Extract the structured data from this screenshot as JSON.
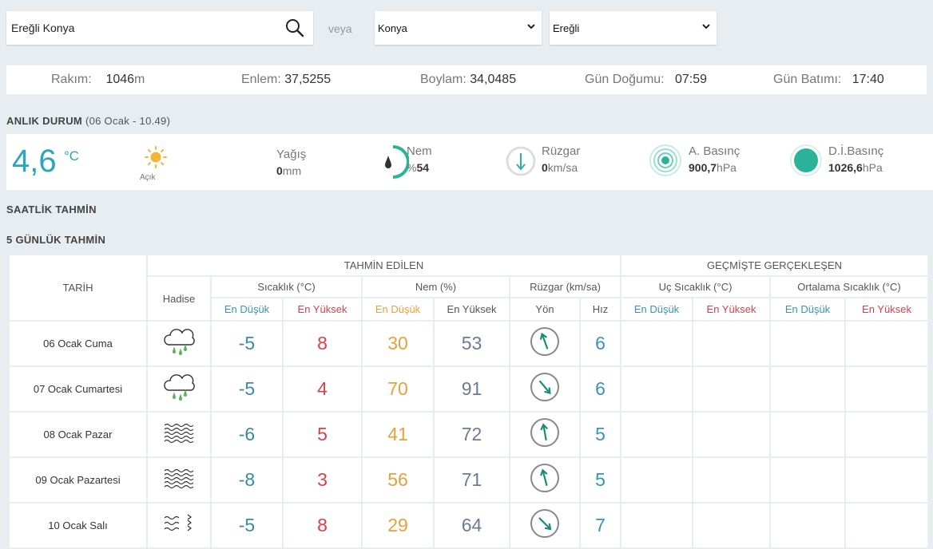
{
  "search": {
    "value": "Ereğli Konya",
    "or_label": "veya"
  },
  "selects": {
    "province": "Konya",
    "district": "Ereğli"
  },
  "info": {
    "rakim_label": "Rakım:",
    "rakim_value": "1046",
    "rakim_unit": "m",
    "enlem_label": "Enlem:",
    "enlem_value": "37,5255",
    "boylam_label": "Boylam:",
    "boylam_value": "34,0485",
    "gundogumu_label": "Gün Doğumu:",
    "gundogumu_value": "07:59",
    "gunbatimi_label": "Gün Batımı:",
    "gunbatimi_value": "17:40"
  },
  "current": {
    "title": "ANLIK DURUM",
    "subtitle": "(06 Ocak - 10.49)",
    "temp": "4,6",
    "temp_unit": "°C",
    "condition": "Açık",
    "yagis_label": "Yağış",
    "yagis_value": "0",
    "yagis_unit": "mm",
    "nem_label": "Nem",
    "nem_prefix": "%",
    "nem_value": "54",
    "ruzgar_label": "Rüzgar",
    "ruzgar_value": "0",
    "ruzgar_unit": "km/sa",
    "abasinc_label": "A. Basınç",
    "abasinc_value": "900,7",
    "abasinc_unit": "hPa",
    "dibasinc_label": "D.İ.Basınç",
    "dibasinc_value": "1026,6",
    "dibasinc_unit": "hPa",
    "colors": {
      "accent": "#2aa6bf",
      "teal": "#2bb39a"
    }
  },
  "hourly": {
    "title": "SAATLİK TAHMİN"
  },
  "forecast": {
    "title": "5 GÜNLÜK TAHMİN",
    "headers": {
      "tarih": "TARİH",
      "predicted": "TAHMİN EDİLEN",
      "past": "GEÇMİŞTE GERÇEKLEŞEN",
      "hadise": "Hadise",
      "sicaklik": "Sıcaklık (°C)",
      "nem": "Nem (%)",
      "ruzgar": "Rüzgar (km/sa)",
      "uc_sicaklik": "Uç Sıcaklık (°C)",
      "ort_sicaklik": "Ortalama Sıcaklık (°C)",
      "en_dusuk": "En Düşük",
      "en_yuksek": "En Yüksek",
      "yon": "Yön",
      "hiz": "Hız"
    },
    "rows": [
      {
        "date": "06 Ocak Cuma",
        "icon": "rain-cloud-icon",
        "tmin": "-5",
        "tmax": "8",
        "nmin": "30",
        "nmax": "53",
        "dir_deg": 160,
        "speed": "6"
      },
      {
        "date": "07 Ocak Cumartesi",
        "icon": "rain-cloud-icon",
        "tmin": "-5",
        "tmax": "4",
        "nmin": "70",
        "nmax": "91",
        "dir_deg": 320,
        "speed": "6"
      },
      {
        "date": "08 Ocak Pazar",
        "icon": "fog-icon",
        "tmin": "-6",
        "tmax": "5",
        "nmin": "41",
        "nmax": "72",
        "dir_deg": 170,
        "speed": "5"
      },
      {
        "date": "09 Ocak Pazartesi",
        "icon": "fog-icon",
        "tmin": "-8",
        "tmax": "3",
        "nmin": "56",
        "nmax": "71",
        "dir_deg": 165,
        "speed": "5"
      },
      {
        "date": "10 Ocak Salı",
        "icon": "haze-icon",
        "tmin": "-5",
        "tmax": "8",
        "nmin": "29",
        "nmax": "64",
        "dir_deg": 315,
        "speed": "7"
      }
    ]
  }
}
